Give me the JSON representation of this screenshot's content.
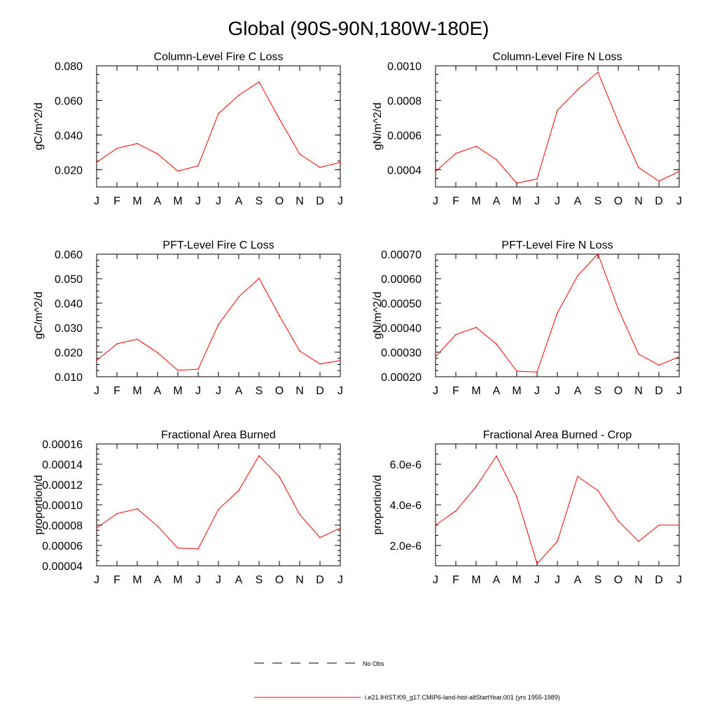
{
  "figure_title": "Global (90S-90N,180W-180E)",
  "line_color": "#ff0000",
  "month_labels": [
    "J",
    "F",
    "M",
    "A",
    "M",
    "J",
    "J",
    "A",
    "S",
    "O",
    "N",
    "D",
    "J"
  ],
  "legend": {
    "obs_label": "No Obs",
    "model_label": "i.e21.IHIST.f09_g17.CMIP6-land-hist-altStartYear.001 (yrs 1955-1989)"
  },
  "chart_data": [
    {
      "type": "line",
      "title": "Column-Level Fire C Loss",
      "ylabel": "gC/m^2/d",
      "ylim": [
        0.01,
        0.08
      ],
      "yticks": [
        0.02,
        0.04,
        0.06,
        0.08
      ],
      "ytick_labels": [
        "0.020",
        "0.040",
        "0.060",
        "0.080"
      ],
      "yminor": 0.005,
      "x": [
        "J",
        "F",
        "M",
        "A",
        "M",
        "J",
        "J",
        "A",
        "S",
        "O",
        "N",
        "D",
        "J"
      ],
      "values": [
        0.0242,
        0.0323,
        0.0351,
        0.0291,
        0.0192,
        0.0222,
        0.0524,
        0.063,
        0.0707,
        0.0493,
        0.029,
        0.0213,
        0.0242
      ]
    },
    {
      "type": "line",
      "title": "Column-Level Fire N Loss",
      "ylabel": "gN/m^2/d",
      "ylim": [
        0.0003,
        0.001
      ],
      "yticks": [
        0.0004,
        0.0006,
        0.0008,
        0.001
      ],
      "ytick_labels": [
        "0.0004",
        "0.0006",
        "0.0008",
        "0.0010"
      ],
      "yminor": 5e-05,
      "x": [
        "J",
        "F",
        "M",
        "A",
        "M",
        "J",
        "J",
        "A",
        "S",
        "O",
        "N",
        "D",
        "J"
      ],
      "values": [
        0.000389,
        0.000494,
        0.000535,
        0.000458,
        0.000322,
        0.000346,
        0.000742,
        0.000862,
        0.000964,
        0.000676,
        0.000412,
        0.000334,
        0.000389
      ]
    },
    {
      "type": "line",
      "title": "PFT-Level Fire C Loss",
      "ylabel": "gC/m^2/d",
      "ylim": [
        0.01,
        0.06
      ],
      "yticks": [
        0.01,
        0.02,
        0.03,
        0.04,
        0.05,
        0.06
      ],
      "ytick_labels": [
        "0.010",
        "0.020",
        "0.030",
        "0.040",
        "0.050",
        "0.060"
      ],
      "yminor": 0.0025,
      "x": [
        "J",
        "F",
        "M",
        "A",
        "M",
        "J",
        "J",
        "A",
        "S",
        "O",
        "N",
        "D",
        "J"
      ],
      "values": [
        0.0166,
        0.0234,
        0.0253,
        0.0198,
        0.0126,
        0.0131,
        0.0313,
        0.0426,
        0.0501,
        0.0349,
        0.0205,
        0.0152,
        0.0166
      ]
    },
    {
      "type": "line",
      "title": "PFT-Level Fire N Loss",
      "ylabel": "gN/m^2/d",
      "ylim": [
        0.0002,
        0.0007
      ],
      "yticks": [
        0.0002,
        0.0003,
        0.0004,
        0.0005,
        0.0006,
        0.0007
      ],
      "ytick_labels": [
        "0.00020",
        "0.00030",
        "0.00040",
        "0.00050",
        "0.00060",
        "0.00070"
      ],
      "yminor": 2.5e-05,
      "x": [
        "J",
        "F",
        "M",
        "A",
        "M",
        "J",
        "J",
        "A",
        "S",
        "O",
        "N",
        "D",
        "J"
      ],
      "values": [
        0.000281,
        0.000372,
        0.000401,
        0.000333,
        0.000223,
        0.000219,
        0.00046,
        0.000612,
        0.000701,
        0.000476,
        0.000292,
        0.000247,
        0.000281
      ]
    },
    {
      "type": "line",
      "title": "Fractional Area Burned",
      "ylabel": "proportion/d",
      "ylim": [
        4e-05,
        0.00016
      ],
      "yticks": [
        4e-05,
        6e-05,
        8e-05,
        0.0001,
        0.00012,
        0.00014,
        0.00016
      ],
      "ytick_labels": [
        "0.00004",
        "0.00006",
        "0.00008",
        "0.00010",
        "0.00012",
        "0.00014",
        "0.00016"
      ],
      "yminor": 5e-06,
      "x": [
        "J",
        "F",
        "M",
        "A",
        "M",
        "J",
        "J",
        "A",
        "S",
        "O",
        "N",
        "D",
        "J"
      ],
      "values": [
        7.73e-05,
        9.13e-05,
        9.61e-05,
        7.91e-05,
        5.74e-05,
        5.66e-05,
        9.55e-05,
        0.0001142,
        0.0001483,
        0.0001277,
        9.05e-05,
        6.78e-05,
        7.73e-05
      ]
    },
    {
      "type": "line",
      "title": "Fractional Area Burned - Crop",
      "ylabel": "proportion/d",
      "ylim": [
        1e-06,
        7e-06
      ],
      "yticks": [
        2e-06,
        4e-06,
        6e-06
      ],
      "ytick_labels": [
        "2.0e-6",
        "4.0e-6",
        "6.0e-6"
      ],
      "yminor": 5e-07,
      "x": [
        "J",
        "F",
        "M",
        "A",
        "M",
        "J",
        "J",
        "A",
        "S",
        "O",
        "N",
        "D",
        "J"
      ],
      "values": [
        3e-06,
        3.7e-06,
        4.9e-06,
        6.4e-06,
        4.4e-06,
        1.1e-06,
        2.2e-06,
        5.4e-06,
        4.7e-06,
        3.2e-06,
        2.2e-06,
        3e-06,
        3e-06
      ]
    }
  ]
}
